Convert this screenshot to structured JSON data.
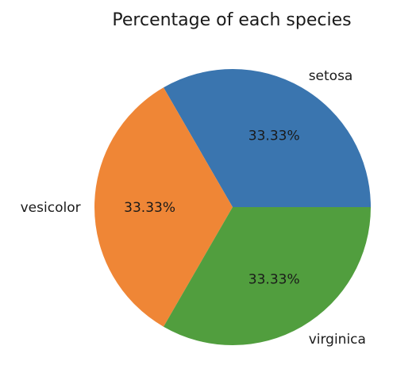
{
  "chart_data": {
    "type": "pie",
    "title": "Percentage of each species",
    "categories": [
      "setosa",
      "vesicolor",
      "virginica"
    ],
    "values": [
      33.33,
      33.33,
      33.33
    ],
    "percent_labels": [
      "33.33%",
      "33.33%",
      "33.33%"
    ],
    "colors": [
      "#3a75af",
      "#ef8636",
      "#519e3e"
    ],
    "start_angle_deg": 0,
    "direction": "counterclockwise",
    "legend": "none"
  }
}
